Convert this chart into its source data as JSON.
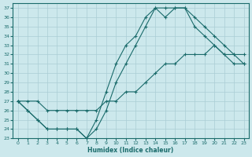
{
  "xlabel": "Humidex (Indice chaleur)",
  "xlim": [
    -0.5,
    23.5
  ],
  "ylim": [
    23,
    37.5
  ],
  "xticks": [
    0,
    1,
    2,
    3,
    4,
    5,
    6,
    7,
    8,
    9,
    10,
    11,
    12,
    13,
    14,
    15,
    16,
    17,
    18,
    19,
    20,
    21,
    22,
    23
  ],
  "yticks": [
    23,
    24,
    25,
    26,
    27,
    28,
    29,
    30,
    31,
    32,
    33,
    34,
    35,
    36,
    37
  ],
  "bg_color": "#cce8ec",
  "line_color": "#1a6b6b",
  "grid_color": "#aacdd4",
  "line1": {
    "x": [
      0,
      1,
      2,
      3,
      4,
      5,
      6,
      7,
      8,
      9,
      10,
      11,
      12,
      13,
      14,
      15,
      16,
      17,
      18,
      19,
      20,
      21,
      22,
      23
    ],
    "y": [
      27,
      26,
      25,
      24,
      24,
      24,
      24,
      23,
      24,
      26,
      29,
      31,
      33,
      35,
      37,
      37,
      37,
      37,
      36,
      35,
      34,
      33,
      32,
      31
    ]
  },
  "line2": {
    "x": [
      0,
      1,
      2,
      3,
      4,
      5,
      6,
      7,
      8,
      9,
      10,
      11,
      12,
      13,
      14,
      15,
      16,
      17,
      18,
      19,
      20,
      21,
      22,
      23
    ],
    "y": [
      27,
      26,
      25,
      24,
      24,
      24,
      24,
      23,
      25,
      28,
      31,
      33,
      34,
      36,
      37,
      36,
      37,
      37,
      35,
      34,
      33,
      32,
      31,
      31
    ]
  },
  "line3": {
    "x": [
      0,
      1,
      2,
      3,
      4,
      5,
      6,
      7,
      8,
      9,
      10,
      11,
      12,
      13,
      14,
      15,
      16,
      17,
      18,
      19,
      20,
      21,
      22,
      23
    ],
    "y": [
      27,
      27,
      27,
      26,
      26,
      26,
      26,
      26,
      26,
      27,
      27,
      28,
      28,
      29,
      30,
      31,
      31,
      32,
      32,
      32,
      33,
      32,
      32,
      32
    ]
  }
}
